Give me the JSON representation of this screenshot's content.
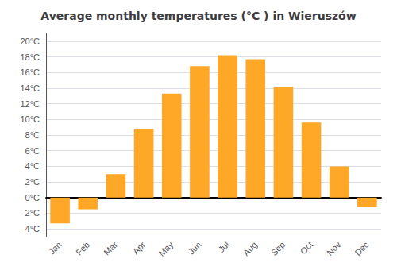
{
  "chart_data": {
    "type": "bar",
    "title": "Average monthly temperatures (°C ) in Wieruszów",
    "categories": [
      "Jan",
      "Feb",
      "Mar",
      "Apr",
      "May",
      "Jun",
      "Jul",
      "Aug",
      "Sep",
      "Oct",
      "Nov",
      "Dec"
    ],
    "values": [
      -3.3,
      -1.5,
      3.0,
      8.8,
      13.3,
      16.8,
      18.2,
      17.7,
      14.2,
      9.6,
      4.0,
      -1.2
    ],
    "color": "#FFA726",
    "ylim": [
      -5,
      21
    ],
    "yticks": [
      {
        "value": -4,
        "label": "-4°C"
      },
      {
        "value": -2,
        "label": "-2°C"
      },
      {
        "value": 0,
        "label": "0°C"
      },
      {
        "value": 2,
        "label": "2°C"
      },
      {
        "value": 4,
        "label": "4°C"
      },
      {
        "value": 6,
        "label": "6°C"
      },
      {
        "value": 8,
        "label": "8°C"
      },
      {
        "value": 10,
        "label": "10°C"
      },
      {
        "value": 12,
        "label": "12°C"
      },
      {
        "value": 14,
        "label": "14°C"
      },
      {
        "value": 16,
        "label": "16°C"
      },
      {
        "value": 18,
        "label": "18°C"
      },
      {
        "value": 20,
        "label": "20°C"
      }
    ],
    "grid": true
  }
}
